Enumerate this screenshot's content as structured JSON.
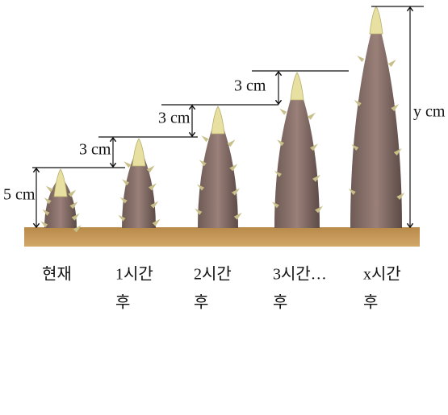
{
  "measurements": [
    {
      "label": "5 cm"
    },
    {
      "label": "3 cm"
    },
    {
      "label": "3 cm"
    },
    {
      "label": "3 cm"
    },
    {
      "label": "y cm"
    }
  ],
  "stages": [
    {
      "lines": [
        "현재"
      ]
    },
    {
      "lines": [
        "1시간",
        "후"
      ]
    },
    {
      "lines": [
        "2시간",
        "후"
      ]
    },
    {
      "lines": [
        "3시간…",
        "후"
      ]
    },
    {
      "lines": [
        "x시간",
        "후"
      ]
    }
  ]
}
